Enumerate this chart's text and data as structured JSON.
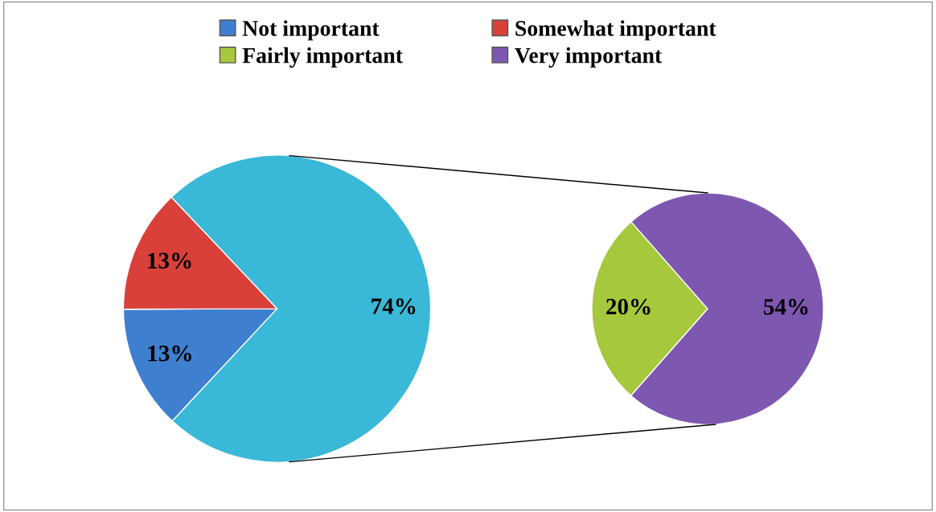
{
  "chart_data": [
    {
      "type": "pie",
      "categories": [
        "Not important",
        "Somewhat important",
        null
      ],
      "values": [
        13,
        13,
        74
      ],
      "colors": [
        "#3f7fcf",
        "#d9403a",
        "#3ab8d8"
      ],
      "value_labels": [
        "13%",
        "13%",
        "74%"
      ],
      "legend": "top"
    },
    {
      "type": "pie",
      "categories": [
        "Fairly important",
        "Very important"
      ],
      "values": [
        20,
        54
      ],
      "colors": [
        "#a6c83c",
        "#7e57b0"
      ],
      "value_labels": [
        "20%",
        "54%"
      ],
      "legend": "top"
    }
  ]
}
